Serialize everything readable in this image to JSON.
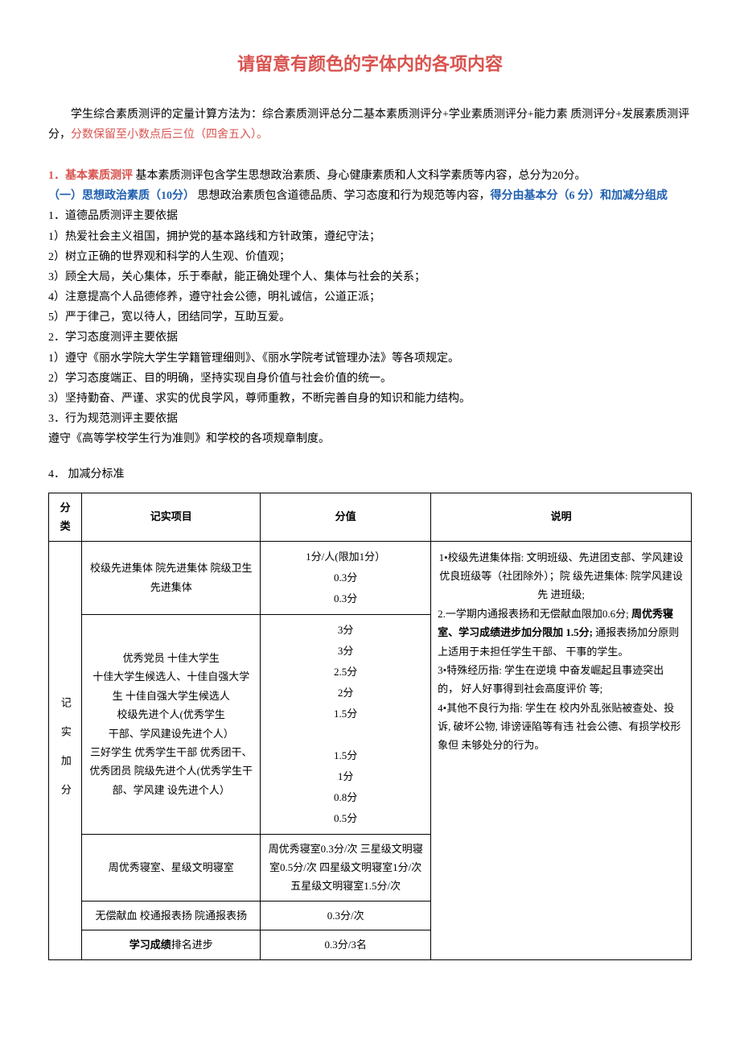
{
  "title": "请留意有颜色的字体内的各项内容",
  "intro_prefix": "学生综合素质测评的定量计算方法为：综合素质测评总分二基本素质测评分+学业素质测评分+能力素 质测评分+发展素质测评分，",
  "intro_red": "分数保留至小数点后三位（四舍五入）。",
  "s1_num": "1．",
  "s1_head": "基本素质测评",
  "s1_tail": " 基本素质测评包含学生思想政治素质、身心健康素质和人文科学素质等内容，总分为20分。",
  "s11_head": "（一）思想政治素质（10分）",
  "s11_mid": "  思想政治素质包含道德品质、学习态度和行为规范等内容，",
  "s11_tail": "得分由基本分（6 分）和加减分组成",
  "p1": "1．道德品质测评主要依据",
  "p1_1": "1）热爱社会主义祖国，拥护党的基本路线和方针政策，遵纪守法；",
  "p1_2": "2）树立正确的世界观和科学的人生观、价值观；",
  "p1_3": "3）顾全大局，关心集体，乐于奉献，能正确处理个人、集体与社会的关系；",
  "p1_4": "4）注意提高个人品德修养，遵守社会公德，明礼诚信，公道正派；",
  "p1_5": "5）严于律己，宽以待人，团结同学，互助互爱。",
  "p2": "2．学习态度测评主要依据",
  "p2_1": "1）遵守《丽水学院大学生学籍管理细则》、《丽水学院考试管理办法》等各项规定。",
  "p2_2": "2）学习态度端正、目的明确，坚持实现自身价值与社会价值的统一。",
  "p2_3": "3）坚持勤奋、严谨、求实的优良学风，尊师重教，不断完善自身的知识和能力结构。",
  "p3": "3．行为规范测评主要依据",
  "p3_1": "遵守《高等学校学生行为准则》和学校的各项规章制度。",
  "p4": "4．  加减分标准",
  "th1": "分类",
  "th2": "记实项目",
  "th3": "分值",
  "th4": "说明",
  "cat": "记 实 加 分",
  "r1c2": "校级先进集体 院先进集体 院级卫生先进集体",
  "r1c3": "1分/人(限加1分）\n0.3分\n0.3分",
  "r2c2": "优秀党员 十佳大学生\n十佳大学生候选人、十佳自强大学生 十佳自强大学生候选人\n校级先进个人(优秀学生\n干部、学风建设先进个人）\n三好学生 优秀学生干部 优秀团干、优秀团员 院级先进个人(优秀学生干部、学风建 设先进个人）",
  "r2c3": "3分\n3分\n2.5分\n2分\n1.5分\n\n1.5分\n1分\n0.8分\n0.5分",
  "r3c2": "周优秀寝室、星级文明寝室",
  "r3c3": "周优秀寝室0.3分/次 三星级文明寝室0.5分/次 四星级文明寝室1分/次 五星级文明寝室1.5分/次",
  "r4c2": "无偿献血 校通报表扬 院通报表扬",
  "r4c3": "0.3分/次",
  "r5c2_b": "学习成绩",
  "r5c2_t": "排名进步",
  "r5c3": "0.3分/3名",
  "notes_1": "1•校级先进集体指: 文明班级、先进团支部、学风建设 优良班级等（社团除外）；院 级先进集体: 院学风建设先 进班级;",
  "notes_2a": "2.一学期内通报表扬和无偿献血限加0.6分; ",
  "notes_2b": "周优秀寝 室、学习成绩进步加分限加 1.5分;",
  "notes_2c": " 通报表扬加分原则   上适用于未担任学生干部、   干事的学生。",
  "notes_3": "3•特殊经历指: 学生在逆境 中奋发崛起且事迹突出的，   好人好事得到社会高度评价 等;",
  "notes_4": "4•其他不良行为指: 学生在 校内外乱张贴被查处、投诉,   破坏公物, 诽谤诬陷等有违 社会公德、有损学校形象但 未够处分的行为。"
}
